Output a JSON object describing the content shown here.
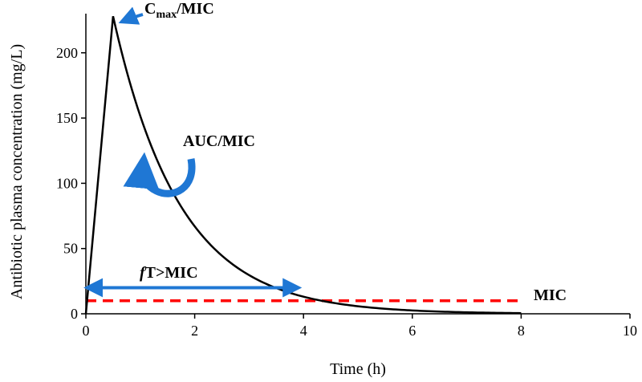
{
  "chart_data": {
    "type": "line",
    "xlabel": "Time (h)",
    "ylabel": "Antibiotic plasma concentration (mg/L)",
    "xlim": [
      0,
      10
    ],
    "ylim": [
      0,
      230
    ],
    "x_ticks": [
      "0",
      "2",
      "4",
      "6",
      "8",
      "10"
    ],
    "y_ticks": [
      "0",
      "50",
      "100",
      "150",
      "200"
    ],
    "grid": false,
    "series": [
      {
        "x": [
          0,
          0.5,
          1,
          1.5,
          2,
          2.5,
          3,
          3.5,
          4,
          4.5,
          5,
          5.5,
          6,
          6.5,
          7,
          7.5,
          8
        ],
        "values": [
          0,
          228,
          150,
          99,
          65,
          43,
          28,
          19,
          12,
          8,
          5.3,
          3.5,
          2.3,
          1.5,
          1,
          0.7,
          0.5
        ],
        "color": "#000000"
      }
    ],
    "mic_line": {
      "y": 10,
      "x": [
        0,
        8
      ],
      "color": "#ff0000",
      "label": "MIC"
    },
    "annotations": {
      "cmax": {
        "main": "C",
        "sub": "max",
        "rest": "/MIC",
        "color": "#1f77d4"
      },
      "auc": {
        "label": "AUC/MIC",
        "color": "#1f77d4"
      },
      "ft": {
        "italic": "f",
        "rest": "T>MIC",
        "x_start": 0,
        "x_end": 3.9,
        "y": 20,
        "color": "#1f77d4"
      }
    }
  }
}
